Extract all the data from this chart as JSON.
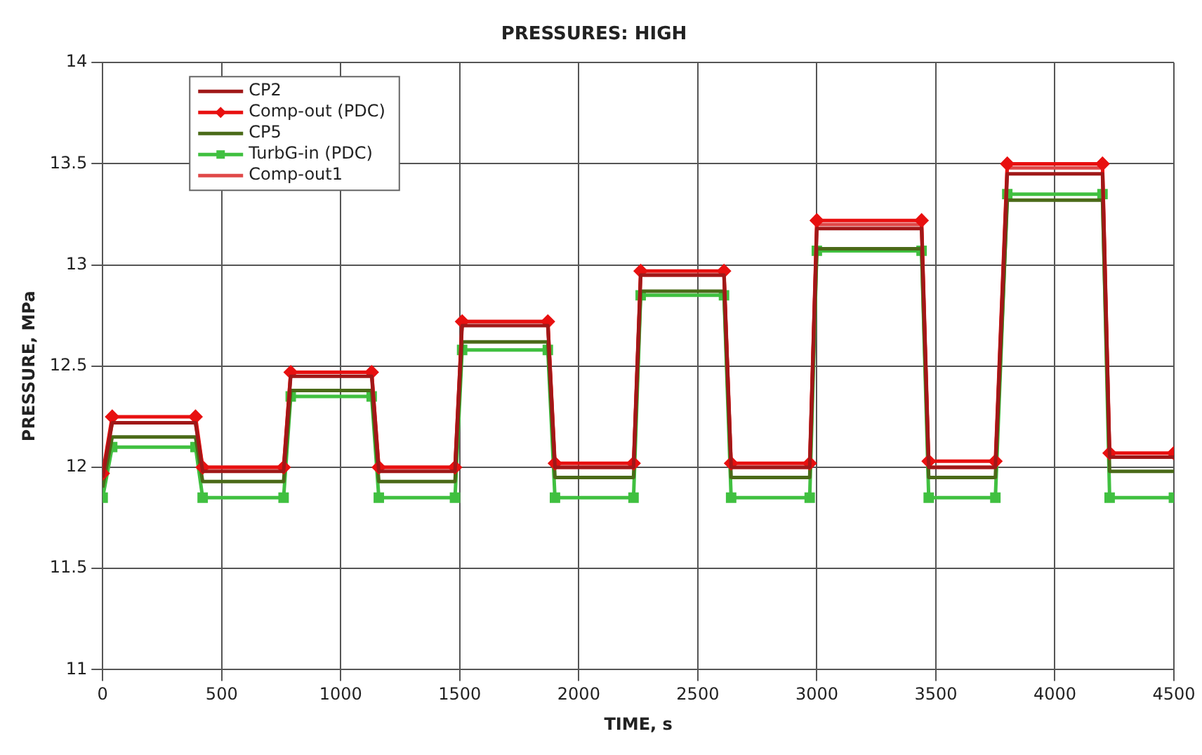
{
  "chart_data": {
    "type": "line",
    "title": "PRESSURES: HIGH",
    "xlabel": "TIME, s",
    "ylabel": "PRESSURE, MPa",
    "x": [
      0,
      40,
      390,
      420,
      760,
      790,
      1130,
      1160,
      1480,
      1510,
      1870,
      1900,
      2230,
      2260,
      2610,
      2640,
      2970,
      3000,
      3440,
      3470,
      3750,
      3800,
      4200,
      4230,
      4500
    ],
    "series": [
      {
        "name": "CP2",
        "color": "#a01818",
        "values": [
          11.95,
          12.22,
          12.22,
          11.98,
          11.98,
          12.45,
          12.45,
          11.98,
          11.98,
          12.7,
          12.7,
          12.0,
          12.0,
          12.95,
          12.95,
          12.0,
          12.0,
          13.18,
          13.18,
          12.0,
          12.0,
          13.45,
          13.45,
          12.05,
          12.05
        ]
      },
      {
        "name": "Comp-out (PDC)",
        "color": "#e81010",
        "marker": "diamond",
        "values": [
          11.97,
          12.25,
          12.25,
          12.0,
          12.0,
          12.47,
          12.47,
          12.0,
          12.0,
          12.72,
          12.72,
          12.02,
          12.02,
          12.97,
          12.97,
          12.02,
          12.02,
          13.22,
          13.22,
          12.03,
          12.03,
          13.5,
          13.5,
          12.07,
          12.07
        ]
      },
      {
        "name": "CP5",
        "color": "#4a6a18",
        "values": [
          11.9,
          12.15,
          12.15,
          11.93,
          11.93,
          12.38,
          12.38,
          11.93,
          11.93,
          12.62,
          12.62,
          11.95,
          11.95,
          12.87,
          12.87,
          11.95,
          11.95,
          13.08,
          13.08,
          11.95,
          11.95,
          13.32,
          13.32,
          11.98,
          11.98
        ]
      },
      {
        "name": "TurbG-in (PDC)",
        "color": "#40c040",
        "marker": "square",
        "values": [
          11.85,
          12.1,
          12.1,
          11.85,
          11.85,
          12.35,
          12.35,
          11.85,
          11.85,
          12.58,
          12.58,
          11.85,
          11.85,
          12.85,
          12.85,
          11.85,
          11.85,
          13.07,
          13.07,
          11.85,
          11.85,
          13.35,
          13.35,
          11.85,
          11.85
        ]
      },
      {
        "name": "Comp-out1",
        "color": "#e04848",
        "values": [
          11.95,
          12.22,
          12.22,
          12.0,
          12.0,
          12.47,
          12.47,
          12.0,
          12.0,
          12.72,
          12.72,
          12.0,
          12.0,
          12.95,
          12.95,
          12.0,
          12.0,
          13.2,
          13.2,
          12.0,
          12.0,
          13.48,
          13.48,
          12.05,
          12.05
        ]
      }
    ],
    "xlim": [
      0,
      4500
    ],
    "xticks": [
      0,
      500,
      1000,
      1500,
      2000,
      2500,
      3000,
      3500,
      4000,
      4500
    ],
    "ylim": [
      11,
      14
    ],
    "yticks": [
      11,
      11.5,
      12,
      12.5,
      13,
      13.5,
      14
    ],
    "grid": true,
    "legend": "top left",
    "line_style": "solid"
  }
}
